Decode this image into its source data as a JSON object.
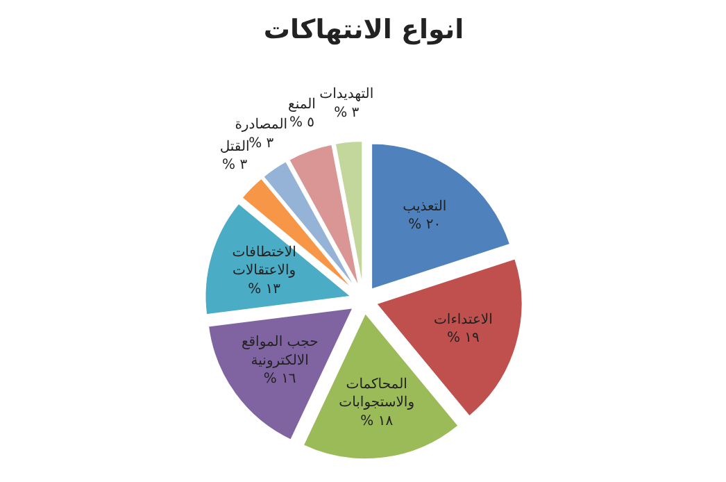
{
  "chart_data": {
    "type": "pie",
    "title": "انواع الانتهاكات",
    "categories": [
      "التعذيب",
      "الاعتداءات",
      "المحاكمات والاستجوابات",
      "حجب المواقع الالكترونية",
      "الاختطافات والاعتقالات",
      "القتل",
      "المصادرة",
      "المنع",
      "التهديدات"
    ],
    "values": [
      20,
      19,
      18,
      16,
      13,
      3,
      3,
      5,
      3
    ],
    "value_labels": [
      "% ٢٠",
      "% ١٩",
      "% ١٨",
      "% ١٦",
      "% ١٣",
      "% ٣",
      "% ٣",
      "% ٥",
      "% ٣"
    ],
    "colors": [
      "#4f81bd",
      "#c0504d",
      "#9bbb59",
      "#8064a2",
      "#4bacc6",
      "#f79646",
      "#95b3d7",
      "#d99694",
      "#c3d69b"
    ]
  }
}
